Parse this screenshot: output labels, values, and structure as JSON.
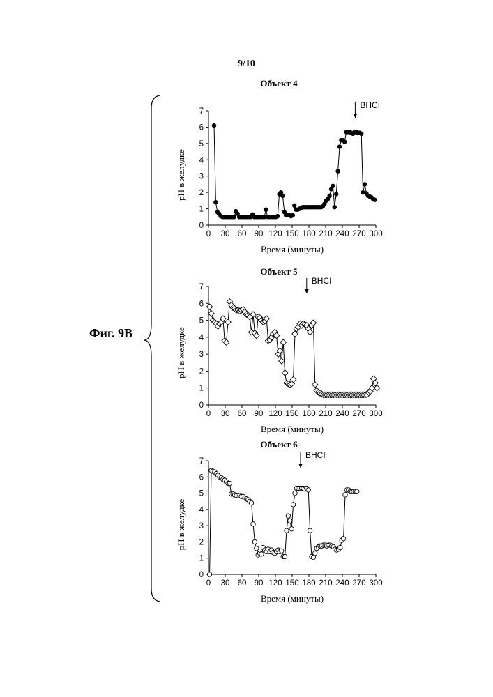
{
  "page": {
    "number": "9/10",
    "figure_label": "Фиг. 9B"
  },
  "chart_data": [
    {
      "type": "line",
      "title": "Объект 4",
      "xlabel": "Время (минуты)",
      "ylabel": "pH в желудке",
      "xlim": [
        0,
        300
      ],
      "ylim": [
        0,
        7
      ],
      "xticks": [
        0,
        30,
        60,
        90,
        120,
        150,
        180,
        210,
        240,
        270,
        300
      ],
      "yticks": [
        0,
        1,
        2,
        3,
        4,
        5,
        6,
        7
      ],
      "marker": "filled-circle",
      "grid": false,
      "annotation": {
        "text": "BHCI",
        "x": 263
      },
      "segments": [
        [
          [
            10,
            6.1
          ],
          [
            13,
            1.4
          ],
          [
            16,
            0.8
          ],
          [
            19,
            0.7
          ],
          [
            22,
            0.55
          ],
          [
            25,
            0.5
          ],
          [
            28,
            0.5
          ],
          [
            31,
            0.5
          ],
          [
            34,
            0.5
          ],
          [
            37,
            0.5
          ],
          [
            40,
            0.5
          ],
          [
            43,
            0.5
          ],
          [
            46,
            0.5
          ],
          [
            49,
            0.85
          ],
          [
            52,
            0.7
          ],
          [
            55,
            0.5
          ],
          [
            58,
            0.5
          ],
          [
            61,
            0.5
          ],
          [
            64,
            0.5
          ],
          [
            67,
            0.5
          ],
          [
            70,
            0.5
          ],
          [
            73,
            0.5
          ],
          [
            76,
            0.5
          ],
          [
            79,
            0.65
          ],
          [
            82,
            0.5
          ],
          [
            85,
            0.5
          ],
          [
            88,
            0.5
          ],
          [
            91,
            0.5
          ],
          [
            94,
            0.5
          ],
          [
            97,
            0.5
          ],
          [
            100,
            0.5
          ],
          [
            103,
            0.95
          ],
          [
            106,
            0.5
          ],
          [
            109,
            0.5
          ],
          [
            112,
            0.5
          ],
          [
            115,
            0.5
          ],
          [
            118,
            0.5
          ],
          [
            121,
            0.5
          ],
          [
            124,
            0.55
          ],
          [
            127,
            1.9
          ],
          [
            130,
            2.0
          ],
          [
            133,
            1.8
          ],
          [
            136,
            0.8
          ],
          [
            139,
            0.6
          ],
          [
            142,
            0.6
          ],
          [
            145,
            0.6
          ],
          [
            148,
            0.55
          ],
          [
            151,
            0.6
          ]
        ],
        [
          [
            154,
            1.2
          ],
          [
            157,
            0.95
          ],
          [
            160,
            0.95
          ],
          [
            163,
            1.0
          ],
          [
            166,
            1.05
          ],
          [
            169,
            1.1
          ],
          [
            172,
            1.1
          ],
          [
            175,
            1.1
          ],
          [
            178,
            1.1
          ],
          [
            181,
            1.1
          ],
          [
            184,
            1.1
          ],
          [
            187,
            1.1
          ],
          [
            190,
            1.1
          ],
          [
            193,
            1.1
          ],
          [
            196,
            1.1
          ],
          [
            199,
            1.1
          ],
          [
            202,
            1.1
          ],
          [
            205,
            1.15
          ],
          [
            208,
            1.3
          ],
          [
            211,
            1.5
          ],
          [
            214,
            1.6
          ],
          [
            217,
            1.8
          ],
          [
            220,
            2.2
          ],
          [
            223,
            2.4
          ],
          [
            226,
            1.1
          ],
          [
            229,
            1.9
          ],
          [
            232,
            3.3
          ],
          [
            235,
            4.8
          ],
          [
            238,
            5.2
          ],
          [
            241,
            5.2
          ],
          [
            244,
            5.1
          ],
          [
            247,
            5.7
          ],
          [
            250,
            5.7
          ],
          [
            253,
            5.7
          ],
          [
            256,
            5.65
          ],
          [
            259,
            5.6
          ],
          [
            262,
            5.7
          ],
          [
            265,
            5.7
          ],
          [
            268,
            5.65
          ],
          [
            271,
            5.65
          ],
          [
            274,
            5.6
          ],
          [
            277,
            2.0
          ],
          [
            280,
            2.5
          ],
          [
            283,
            1.95
          ],
          [
            286,
            1.8
          ],
          [
            289,
            1.75
          ],
          [
            292,
            1.7
          ],
          [
            295,
            1.6
          ],
          [
            298,
            1.55
          ]
        ]
      ]
    },
    {
      "type": "line",
      "title": "Объект 5",
      "xlabel": "Время (минуты)",
      "ylabel": "pH в желудке",
      "xlim": [
        0,
        300
      ],
      "ylim": [
        0,
        7
      ],
      "xticks": [
        0,
        30,
        60,
        90,
        120,
        150,
        180,
        210,
        240,
        270,
        300
      ],
      "yticks": [
        0,
        1,
        2,
        3,
        4,
        5,
        6,
        7
      ],
      "marker": "open-diamond",
      "grid": false,
      "annotation": {
        "text": "BHCI",
        "x": 176
      },
      "segments": [
        [
          [
            2,
            5.8
          ],
          [
            5,
            5.4
          ],
          [
            8,
            5.0
          ],
          [
            11,
            4.9
          ],
          [
            14,
            4.8
          ],
          [
            17,
            4.65
          ],
          [
            20,
            4.8
          ],
          [
            23,
            4.9
          ],
          [
            26,
            5.1
          ],
          [
            29,
            3.8
          ],
          [
            32,
            3.7
          ],
          [
            35,
            4.9
          ],
          [
            38,
            6.1
          ],
          [
            41,
            5.9
          ],
          [
            44,
            5.75
          ],
          [
            47,
            5.7
          ],
          [
            50,
            5.6
          ],
          [
            53,
            5.6
          ],
          [
            56,
            5.55
          ],
          [
            59,
            5.6
          ],
          [
            62,
            5.65
          ],
          [
            65,
            5.5
          ],
          [
            68,
            5.35
          ],
          [
            71,
            5.3
          ],
          [
            74,
            5.2
          ],
          [
            77,
            4.3
          ],
          [
            80,
            5.35
          ],
          [
            83,
            4.25
          ],
          [
            86,
            4.1
          ],
          [
            89,
            5.2
          ],
          [
            92,
            5.15
          ],
          [
            95,
            5.0
          ],
          [
            98,
            4.9
          ],
          [
            101,
            4.95
          ],
          [
            104,
            5.1
          ],
          [
            107,
            3.8
          ],
          [
            110,
            3.85
          ],
          [
            113,
            4.0
          ],
          [
            116,
            4.2
          ],
          [
            119,
            4.3
          ],
          [
            122,
            4.1
          ],
          [
            125,
            3.0
          ],
          [
            128,
            3.2
          ],
          [
            131,
            2.6
          ],
          [
            134,
            3.7
          ],
          [
            137,
            1.9
          ],
          [
            140,
            1.3
          ],
          [
            143,
            1.25
          ],
          [
            146,
            1.2
          ],
          [
            149,
            1.25
          ],
          [
            152,
            1.5
          ],
          [
            155,
            4.2
          ],
          [
            158,
            4.5
          ],
          [
            161,
            4.6
          ],
          [
            164,
            4.8
          ],
          [
            167,
            4.7
          ],
          [
            170,
            4.8
          ],
          [
            173,
            4.75
          ],
          [
            176,
            4.7
          ],
          [
            179,
            4.5
          ],
          [
            182,
            4.3
          ],
          [
            185,
            4.7
          ],
          [
            188,
            4.85
          ],
          [
            191,
            1.2
          ],
          [
            194,
            0.85
          ],
          [
            197,
            0.75
          ],
          [
            200,
            0.7
          ],
          [
            203,
            0.65
          ],
          [
            206,
            0.6
          ],
          [
            209,
            0.6
          ],
          [
            212,
            0.6
          ],
          [
            215,
            0.6
          ],
          [
            218,
            0.6
          ],
          [
            221,
            0.6
          ],
          [
            224,
            0.6
          ],
          [
            227,
            0.6
          ],
          [
            230,
            0.6
          ],
          [
            233,
            0.6
          ],
          [
            236,
            0.6
          ],
          [
            239,
            0.6
          ],
          [
            242,
            0.6
          ],
          [
            245,
            0.6
          ],
          [
            248,
            0.6
          ],
          [
            251,
            0.6
          ],
          [
            254,
            0.6
          ],
          [
            257,
            0.6
          ],
          [
            260,
            0.6
          ],
          [
            263,
            0.6
          ],
          [
            266,
            0.6
          ],
          [
            269,
            0.6
          ],
          [
            272,
            0.6
          ],
          [
            275,
            0.6
          ],
          [
            278,
            0.6
          ],
          [
            281,
            0.6
          ],
          [
            284,
            0.6
          ],
          [
            287,
            0.75
          ],
          [
            290,
            0.8
          ],
          [
            293,
            1.0
          ],
          [
            296,
            1.55
          ],
          [
            299,
            1.3
          ],
          [
            302,
            1.0
          ]
        ]
      ]
    },
    {
      "type": "line",
      "title": "Объект 6",
      "xlabel": "Время (минуты)",
      "ylabel": "pH в желудке",
      "xlim": [
        0,
        300
      ],
      "ylim": [
        0,
        7
      ],
      "xticks": [
        0,
        30,
        60,
        90,
        120,
        150,
        180,
        210,
        240,
        270,
        300
      ],
      "yticks": [
        0,
        1,
        2,
        3,
        4,
        5,
        6,
        7
      ],
      "marker": "open-circle",
      "grid": false,
      "annotation": {
        "text": "BHCI",
        "x": 165
      },
      "segments": [
        [
          [
            2,
            0.0
          ],
          [
            5,
            6.4
          ],
          [
            8,
            6.35
          ],
          [
            11,
            6.3
          ],
          [
            14,
            6.2
          ],
          [
            17,
            6.1
          ],
          [
            20,
            6.0
          ],
          [
            23,
            5.95
          ],
          [
            26,
            5.85
          ],
          [
            29,
            5.8
          ],
          [
            32,
            5.7
          ],
          [
            35,
            5.6
          ],
          [
            38,
            5.6
          ],
          [
            41,
            4.95
          ],
          [
            44,
            4.95
          ],
          [
            47,
            4.9
          ],
          [
            50,
            4.85
          ],
          [
            53,
            4.85
          ],
          [
            56,
            4.85
          ],
          [
            59,
            4.8
          ],
          [
            62,
            4.8
          ],
          [
            65,
            4.7
          ],
          [
            68,
            4.65
          ],
          [
            71,
            4.6
          ],
          [
            74,
            4.5
          ],
          [
            77,
            4.4
          ],
          [
            80,
            3.1
          ],
          [
            83,
            2.0
          ],
          [
            86,
            1.6
          ],
          [
            89,
            1.2
          ],
          [
            92,
            1.3
          ],
          [
            95,
            1.25
          ],
          [
            98,
            1.65
          ],
          [
            101,
            1.5
          ],
          [
            104,
            1.4
          ],
          [
            107,
            1.55
          ],
          [
            110,
            1.4
          ],
          [
            113,
            1.5
          ],
          [
            116,
            1.35
          ],
          [
            119,
            1.3
          ],
          [
            122,
            1.4
          ],
          [
            125,
            1.5
          ],
          [
            128,
            1.4
          ],
          [
            131,
            1.45
          ],
          [
            134,
            1.1
          ],
          [
            137,
            1.1
          ],
          [
            140,
            2.7
          ],
          [
            143,
            3.6
          ],
          [
            146,
            3.3
          ],
          [
            149,
            2.8
          ],
          [
            152,
            4.3
          ],
          [
            155,
            5.0
          ],
          [
            158,
            5.3
          ],
          [
            161,
            5.3
          ],
          [
            164,
            5.3
          ],
          [
            167,
            5.3
          ],
          [
            170,
            5.3
          ],
          [
            173,
            5.25
          ],
          [
            176,
            5.3
          ],
          [
            179,
            5.2
          ],
          [
            182,
            2.7
          ],
          [
            185,
            1.1
          ],
          [
            188,
            1.05
          ],
          [
            191,
            1.3
          ],
          [
            194,
            1.6
          ],
          [
            197,
            1.7
          ],
          [
            200,
            1.75
          ],
          [
            203,
            1.75
          ],
          [
            206,
            1.8
          ],
          [
            209,
            1.8
          ],
          [
            212,
            1.75
          ],
          [
            215,
            1.8
          ],
          [
            218,
            1.8
          ],
          [
            221,
            1.75
          ],
          [
            224,
            1.7
          ],
          [
            227,
            1.55
          ],
          [
            230,
            1.5
          ],
          [
            233,
            1.55
          ],
          [
            236,
            1.65
          ],
          [
            239,
            2.1
          ],
          [
            242,
            2.2
          ],
          [
            245,
            4.9
          ],
          [
            248,
            5.2
          ],
          [
            251,
            5.2
          ],
          [
            254,
            5.1
          ],
          [
            257,
            5.1
          ],
          [
            260,
            5.1
          ],
          [
            263,
            5.1
          ],
          [
            266,
            5.1
          ]
        ]
      ]
    }
  ]
}
